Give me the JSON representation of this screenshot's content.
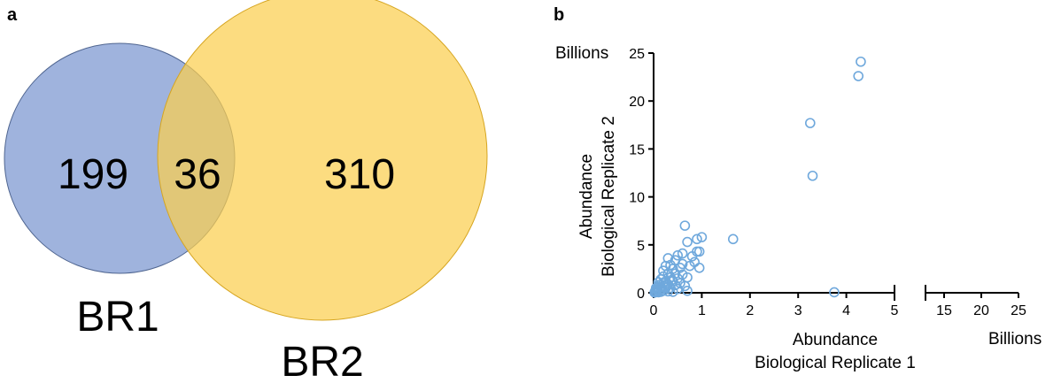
{
  "panel_a_label": "a",
  "panel_b_label": "b",
  "colors": {
    "br1": "#7f9ad1",
    "br2": "#fbcf4f",
    "marker": "#6fa8dc",
    "axis": "#000000"
  },
  "chart_data": [
    {
      "type": "venn",
      "sets": [
        {
          "name": "BR1",
          "only": "199"
        },
        {
          "name": "BR2",
          "only": "310"
        }
      ],
      "intersection": "36"
    },
    {
      "type": "scatter",
      "y_unit_label": "Billions",
      "x_unit_label": "Billions",
      "ylabel_lines": [
        "Abundance",
        "Biological Replicate 2"
      ],
      "xlabel_lines": [
        "Abundance",
        "Biological Replicate 1"
      ],
      "xlim": [
        0,
        25
      ],
      "ylim": [
        0,
        25
      ],
      "x_break": [
        5,
        12.5
      ],
      "x_ticks_left": [
        "0",
        "1",
        "2",
        "3",
        "4",
        "5"
      ],
      "x_ticks_right": [
        "15",
        "20",
        "25"
      ],
      "y_ticks": [
        "0",
        "5",
        "10",
        "15",
        "20",
        "25"
      ],
      "grid": false,
      "marker": "open-circle",
      "points": [
        [
          4.3,
          24.1
        ],
        [
          4.25,
          22.6
        ],
        [
          3.25,
          17.7
        ],
        [
          3.3,
          12.2
        ],
        [
          3.75,
          0.05
        ],
        [
          0.65,
          7.0
        ],
        [
          1.65,
          5.6
        ],
        [
          1.0,
          5.8
        ],
        [
          0.9,
          5.6
        ],
        [
          0.7,
          5.3
        ],
        [
          0.9,
          4.3
        ],
        [
          0.95,
          4.3
        ],
        [
          0.6,
          4.1
        ],
        [
          0.8,
          3.8
        ],
        [
          0.5,
          3.9
        ],
        [
          0.3,
          3.6
        ],
        [
          0.45,
          3.4
        ],
        [
          0.85,
          3.2
        ],
        [
          0.6,
          3.0
        ],
        [
          0.95,
          2.6
        ],
        [
          0.75,
          2.8
        ],
        [
          0.55,
          2.6
        ],
        [
          0.4,
          2.5
        ],
        [
          0.35,
          2.9
        ],
        [
          0.25,
          2.8
        ],
        [
          0.2,
          2.3
        ],
        [
          0.3,
          2.0
        ],
        [
          0.45,
          2.0
        ],
        [
          0.6,
          1.9
        ],
        [
          0.7,
          1.6
        ],
        [
          0.5,
          1.5
        ],
        [
          0.35,
          1.6
        ],
        [
          0.2,
          1.7
        ],
        [
          0.15,
          1.4
        ],
        [
          0.25,
          1.2
        ],
        [
          0.4,
          1.2
        ],
        [
          0.55,
          1.0
        ],
        [
          0.65,
          0.7
        ],
        [
          0.7,
          0.2
        ],
        [
          0.45,
          0.8
        ],
        [
          0.3,
          0.9
        ],
        [
          0.2,
          1.0
        ],
        [
          0.1,
          0.8
        ],
        [
          0.15,
          0.6
        ],
        [
          0.25,
          0.5
        ],
        [
          0.35,
          0.5
        ],
        [
          0.5,
          0.4
        ],
        [
          0.05,
          0.5
        ],
        [
          0.08,
          0.3
        ],
        [
          0.12,
          0.25
        ],
        [
          0.2,
          0.2
        ],
        [
          0.3,
          0.15
        ],
        [
          0.4,
          0.1
        ],
        [
          0.03,
          0.15
        ],
        [
          0.06,
          0.08
        ],
        [
          0.1,
          0.05
        ],
        [
          0.15,
          0.1
        ],
        [
          0.02,
          0.02
        ],
        [
          0.05,
          0.35
        ],
        [
          0.18,
          0.4
        ],
        [
          0.22,
          0.65
        ],
        [
          0.28,
          0.75
        ],
        [
          0.1,
          1.1
        ],
        [
          0.38,
          1.35
        ],
        [
          0.08,
          0.6
        ]
      ]
    }
  ]
}
